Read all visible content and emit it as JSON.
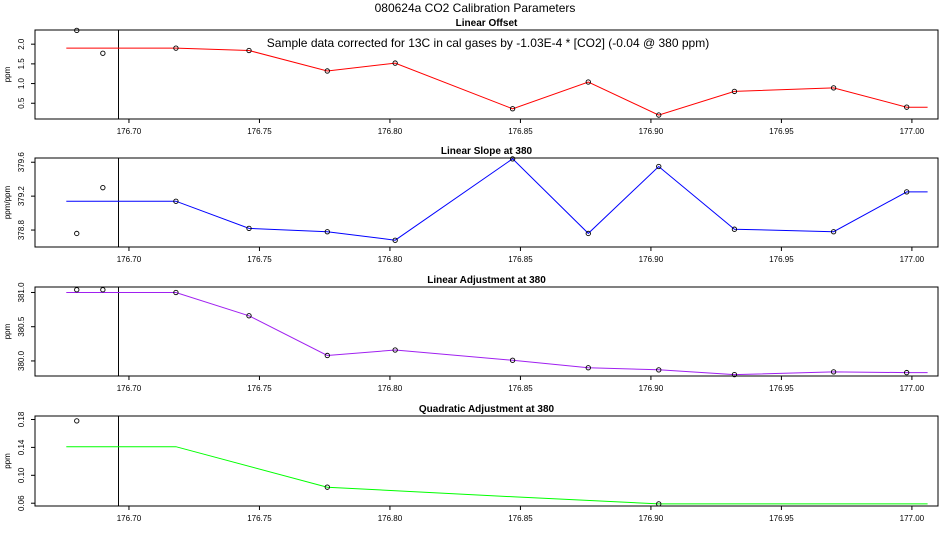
{
  "figure_title": "080624a   CO2 Calibration Parameters",
  "chart_data": [
    {
      "type": "line",
      "title": "Linear Offset",
      "ylabel": "ppm",
      "annotation": "Sample data corrected for 13C in cal gases by -1.03E-4 * [CO2] (-0.04 @ 380 ppm)",
      "xlim": [
        176.664,
        177.01
      ],
      "ylim": [
        0.1,
        2.36
      ],
      "xticks": [
        "176.70",
        "176.75",
        "176.80",
        "176.85",
        "176.90",
        "176.95",
        "177.00"
      ],
      "yticks": [
        "0.5",
        "1.0",
        "1.5",
        "2.0"
      ],
      "vline_x": 176.696,
      "color": "#ff0000",
      "line_x": [
        176.676,
        176.718,
        176.746,
        176.776,
        176.802,
        176.847,
        176.876,
        176.903,
        176.932,
        176.97,
        176.998,
        177.006
      ],
      "line_y": [
        1.9,
        1.9,
        1.84,
        1.32,
        1.52,
        0.36,
        1.04,
        0.2,
        0.8,
        0.89,
        0.4,
        0.4
      ],
      "points_x": [
        176.68,
        176.69,
        176.718,
        176.746,
        176.776,
        176.802,
        176.847,
        176.876,
        176.903,
        176.932,
        176.97,
        176.998
      ],
      "points_y": [
        2.35,
        1.77,
        1.9,
        1.84,
        1.32,
        1.52,
        0.36,
        1.04,
        0.2,
        0.8,
        0.89,
        0.4
      ]
    },
    {
      "type": "line",
      "title": "Linear Slope at 380",
      "ylabel": "ppm/ppm",
      "xlim": [
        176.664,
        177.01
      ],
      "ylim": [
        378.6,
        379.65
      ],
      "xticks": [
        "176.70",
        "176.75",
        "176.80",
        "176.85",
        "176.90",
        "176.95",
        "177.00"
      ],
      "yticks": [
        "378.8",
        "379.2",
        "379.6"
      ],
      "vline_x": 176.696,
      "color": "#0000ff",
      "line_x": [
        176.676,
        176.718,
        176.746,
        176.776,
        176.802,
        176.847,
        176.876,
        176.903,
        176.932,
        176.97,
        176.998,
        177.006
      ],
      "line_y": [
        379.14,
        379.14,
        378.82,
        378.78,
        378.68,
        379.64,
        378.76,
        379.55,
        378.81,
        378.78,
        379.25,
        379.25
      ],
      "points_x": [
        176.68,
        176.69,
        176.718,
        176.746,
        176.776,
        176.802,
        176.847,
        176.876,
        176.903,
        176.932,
        176.97,
        176.998
      ],
      "points_y": [
        378.76,
        379.3,
        379.14,
        378.82,
        378.78,
        378.68,
        379.64,
        378.76,
        379.55,
        378.81,
        378.78,
        379.25
      ]
    },
    {
      "type": "line",
      "title": "Linear Adjustment at 380",
      "ylabel": "ppm",
      "xlim": [
        176.664,
        177.01
      ],
      "ylim": [
        379.78,
        381.08
      ],
      "xticks": [
        "176.70",
        "176.75",
        "176.80",
        "176.85",
        "176.90",
        "176.95",
        "177.00"
      ],
      "yticks": [
        "380.0",
        "380.5",
        "381.0"
      ],
      "vline_x": 176.696,
      "color": "#a020f0",
      "line_x": [
        176.676,
        176.718,
        176.746,
        176.776,
        176.802,
        176.847,
        176.876,
        176.903,
        176.932,
        176.97,
        176.998,
        177.006
      ],
      "line_y": [
        381.0,
        381.0,
        380.66,
        380.08,
        380.16,
        380.01,
        379.9,
        379.87,
        379.8,
        379.84,
        379.83,
        379.83
      ],
      "points_x": [
        176.68,
        176.69,
        176.718,
        176.746,
        176.776,
        176.802,
        176.847,
        176.876,
        176.903,
        176.932,
        176.97,
        176.998
      ],
      "points_y": [
        381.04,
        381.04,
        381.0,
        380.66,
        380.08,
        380.16,
        380.01,
        379.9,
        379.87,
        379.8,
        379.84,
        379.83
      ]
    },
    {
      "type": "line",
      "title": "Quadratic Adjustment at 380",
      "ylabel": "ppm",
      "xlim": [
        176.664,
        177.01
      ],
      "ylim": [
        0.056,
        0.185
      ],
      "xticks": [
        "176.70",
        "176.75",
        "176.80",
        "176.85",
        "176.90",
        "176.95",
        "177.00"
      ],
      "yticks": [
        "0.06",
        "0.10",
        "0.14",
        "0.18"
      ],
      "vline_x": 176.696,
      "color": "#00ff00",
      "line_x": [
        176.676,
        176.718,
        176.776,
        176.848,
        176.903,
        177.006
      ],
      "line_y": [
        0.141,
        0.141,
        0.083,
        0.069,
        0.059,
        0.059
      ],
      "points_x": [
        176.68,
        176.776,
        176.903
      ],
      "points_y": [
        0.178,
        0.083,
        0.059
      ]
    }
  ]
}
